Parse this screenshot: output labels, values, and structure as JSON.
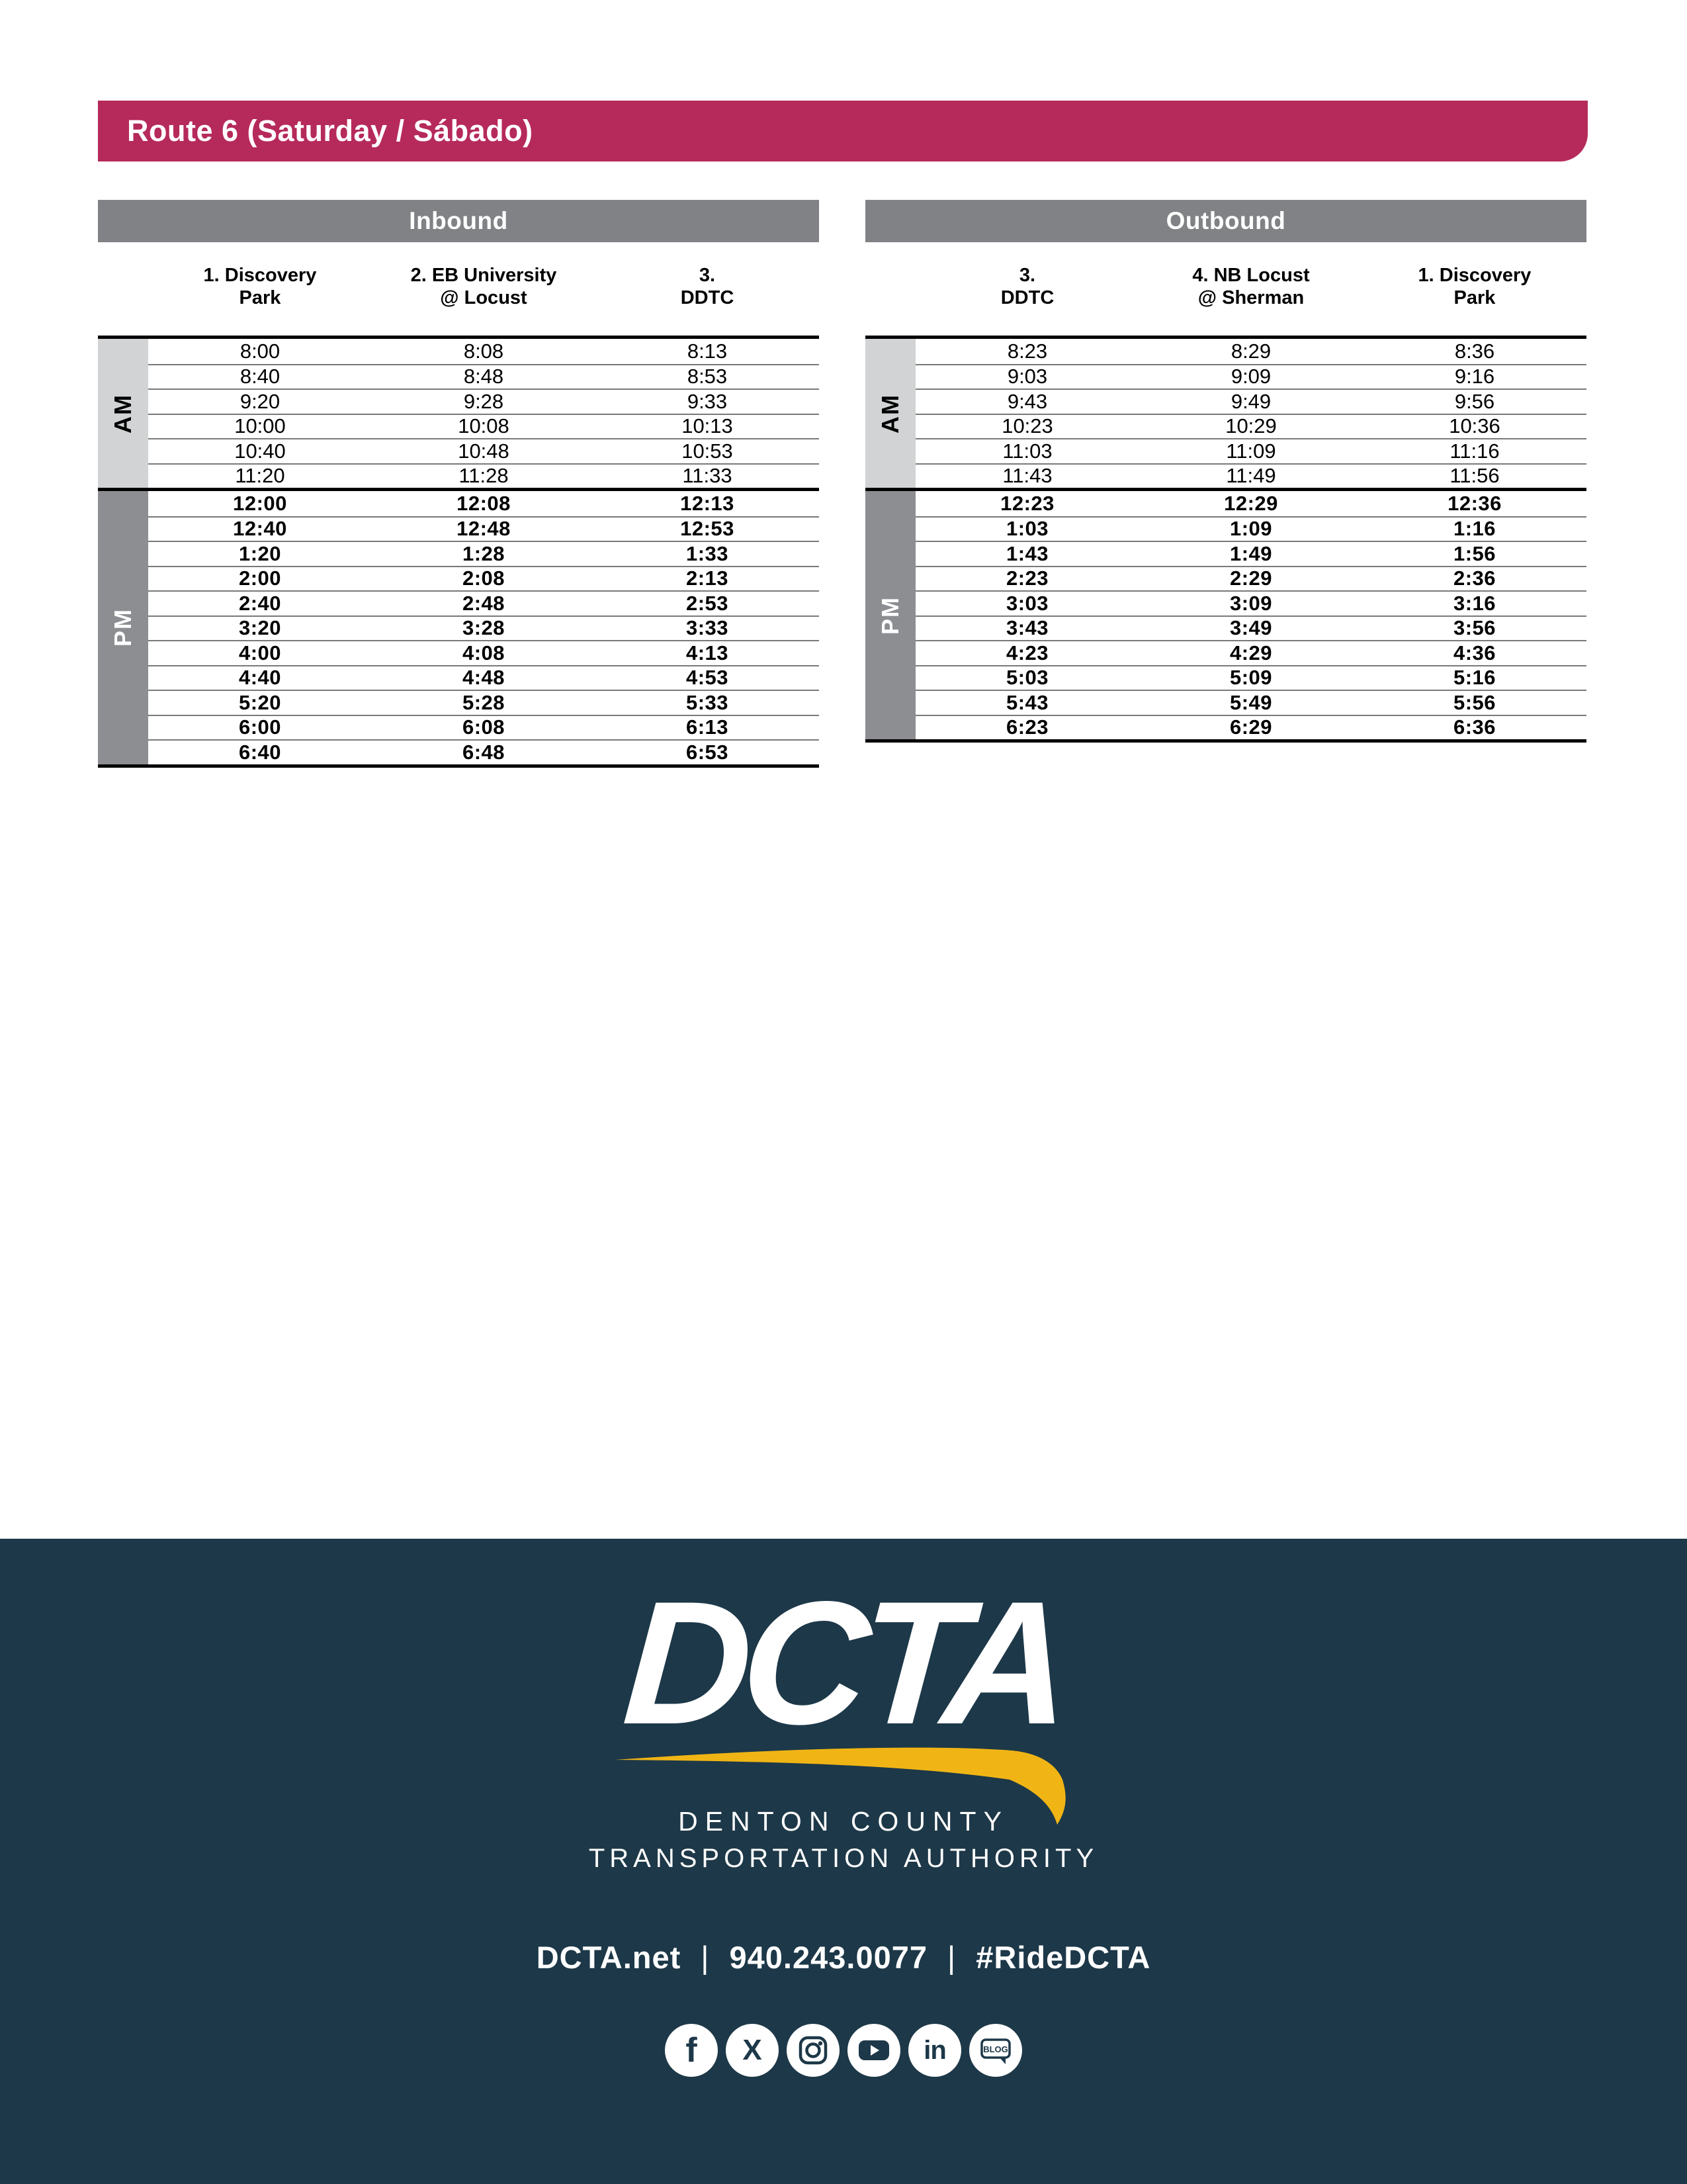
{
  "page": {
    "title": "Route 6 (Saturday / Sábado)"
  },
  "tables": [
    {
      "id": "inbound",
      "direction_label": "Inbound",
      "am_label": "AM",
      "pm_label": "PM",
      "columns": [
        {
          "line1": "1. Discovery",
          "line2": "Park"
        },
        {
          "line1": "2. EB University",
          "line2": "@ Locust"
        },
        {
          "line1": "3.",
          "line2": "DDTC"
        }
      ],
      "am_rows": [
        [
          "8:00",
          "8:08",
          "8:13"
        ],
        [
          "8:40",
          "8:48",
          "8:53"
        ],
        [
          "9:20",
          "9:28",
          "9:33"
        ],
        [
          "10:00",
          "10:08",
          "10:13"
        ],
        [
          "10:40",
          "10:48",
          "10:53"
        ],
        [
          "11:20",
          "11:28",
          "11:33"
        ]
      ],
      "pm_rows": [
        [
          "12:00",
          "12:08",
          "12:13"
        ],
        [
          "12:40",
          "12:48",
          "12:53"
        ],
        [
          "1:20",
          "1:28",
          "1:33"
        ],
        [
          "2:00",
          "2:08",
          "2:13"
        ],
        [
          "2:40",
          "2:48",
          "2:53"
        ],
        [
          "3:20",
          "3:28",
          "3:33"
        ],
        [
          "4:00",
          "4:08",
          "4:13"
        ],
        [
          "4:40",
          "4:48",
          "4:53"
        ],
        [
          "5:20",
          "5:28",
          "5:33"
        ],
        [
          "6:00",
          "6:08",
          "6:13"
        ],
        [
          "6:40",
          "6:48",
          "6:53"
        ]
      ]
    },
    {
      "id": "outbound",
      "direction_label": "Outbound",
      "am_label": "AM",
      "pm_label": "PM",
      "columns": [
        {
          "line1": "3.",
          "line2": "DDTC"
        },
        {
          "line1": "4. NB Locust",
          "line2": "@ Sherman"
        },
        {
          "line1": "1. Discovery",
          "line2": "Park"
        }
      ],
      "am_rows": [
        [
          "8:23",
          "8:29",
          "8:36"
        ],
        [
          "9:03",
          "9:09",
          "9:16"
        ],
        [
          "9:43",
          "9:49",
          "9:56"
        ],
        [
          "10:23",
          "10:29",
          "10:36"
        ],
        [
          "11:03",
          "11:09",
          "11:16"
        ],
        [
          "11:43",
          "11:49",
          "11:56"
        ]
      ],
      "pm_rows": [
        [
          "12:23",
          "12:29",
          "12:36"
        ],
        [
          "1:03",
          "1:09",
          "1:16"
        ],
        [
          "1:43",
          "1:49",
          "1:56"
        ],
        [
          "2:23",
          "2:29",
          "2:36"
        ],
        [
          "3:03",
          "3:09",
          "3:16"
        ],
        [
          "3:43",
          "3:49",
          "3:56"
        ],
        [
          "4:23",
          "4:29",
          "4:36"
        ],
        [
          "5:03",
          "5:09",
          "5:16"
        ],
        [
          "5:43",
          "5:49",
          "5:56"
        ],
        [
          "6:23",
          "6:29",
          "6:36"
        ]
      ]
    }
  ],
  "footer": {
    "logo_text": "DCTA",
    "org_line1": "DENTON COUNTY",
    "org_line2": "TRANSPORTATION AUTHORITY",
    "contact_parts": [
      "DCTA.net",
      "940.243.0077",
      "#RideDCTA"
    ],
    "contact_separator": "|",
    "social_icons": [
      "facebook",
      "x",
      "instagram",
      "youtube",
      "linkedin",
      "blog"
    ],
    "blog_label": "BLOG"
  },
  "colors": {
    "banner": "#B62A5B",
    "table_header_gray": "#808285",
    "am_band": "#D1D3D4",
    "pm_band": "#8C8E91",
    "footer_navy": "#1D3848",
    "swoosh_yellow": "#F0B515",
    "row_line": "#797979"
  }
}
